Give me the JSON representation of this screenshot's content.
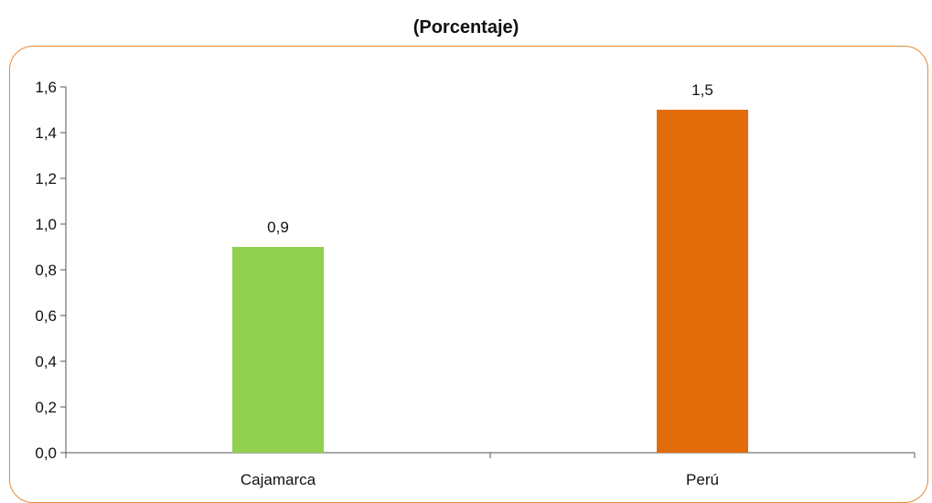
{
  "title": "(Porcentaje)",
  "colors": {
    "frame_border": "#e6893a",
    "axis": "#555555"
  },
  "chart_data": {
    "type": "bar",
    "categories": [
      "Cajamarca",
      "Perú"
    ],
    "values": [
      0.9,
      1.5
    ],
    "data_labels": [
      "0,9",
      "1,5"
    ],
    "bar_colors": [
      "#92d050",
      "#e26b0a"
    ],
    "ylim": [
      0,
      1.6
    ],
    "yticks": [
      0.0,
      0.2,
      0.4,
      0.6,
      0.8,
      1.0,
      1.2,
      1.4,
      1.6
    ],
    "ytick_labels": [
      "0,0",
      "0,2",
      "0,4",
      "0,6",
      "0,8",
      "1,0",
      "1,2",
      "1,4",
      "1,6"
    ],
    "xlabel": "",
    "ylabel": "",
    "grid": false,
    "legend": "none"
  }
}
